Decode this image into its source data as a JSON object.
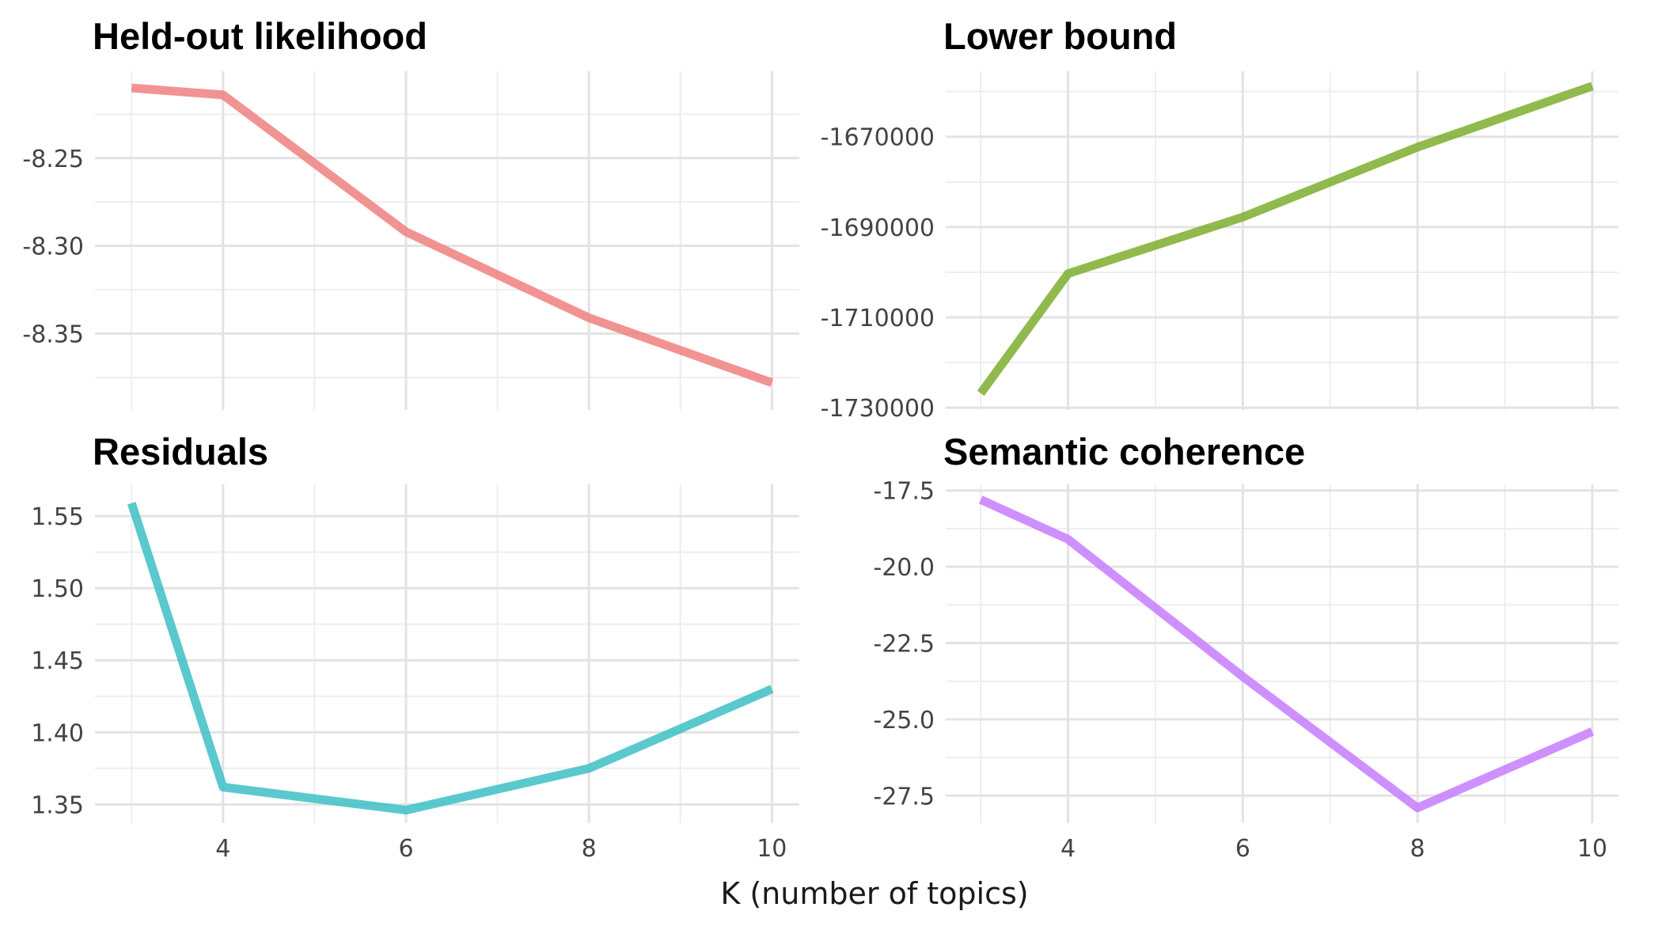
{
  "chart_data": [
    {
      "type": "line",
      "title": "Held-out likelihood",
      "color": "#F08080",
      "x": [
        3,
        4,
        6,
        8,
        10
      ],
      "y": [
        -8.21,
        -8.214,
        -8.292,
        -8.341,
        -8.378
      ],
      "xlim": [
        2.6,
        10.3
      ],
      "ylim": [
        -8.3935,
        -8.2005
      ],
      "yticks": [
        -8.25,
        -8.3,
        -8.35
      ],
      "ytick_labels": [
        "-8.25",
        "-8.30",
        "-8.35"
      ],
      "xticks": [
        4,
        6,
        8,
        10
      ],
      "xtick_labels": [],
      "grid": true
    },
    {
      "type": "line",
      "title": "Lower bound",
      "color": "#7CAE2E",
      "x": [
        3,
        4,
        6,
        8,
        10
      ],
      "y": [
        -1726800,
        -1700300,
        -1687800,
        -1672300,
        -1658800
      ],
      "xlim": [
        2.6,
        10.3
      ],
      "ylim": [
        -1730500,
        -1655500
      ],
      "yticks": [
        -1670000,
        -1690000,
        -1710000,
        -1730000
      ],
      "ytick_labels": [
        "-1670000",
        "-1690000",
        "-1710000",
        "-1730000"
      ],
      "xticks": [
        4,
        6,
        8,
        10
      ],
      "xtick_labels": [],
      "grid": true
    },
    {
      "type": "line",
      "title": "Residuals",
      "color": "#3DBFC4",
      "x": [
        3,
        4,
        6,
        8,
        10
      ],
      "y": [
        1.559,
        1.362,
        1.346,
        1.375,
        1.43
      ],
      "xlim": [
        2.6,
        10.3
      ],
      "ylim": [
        1.337,
        1.572
      ],
      "yticks": [
        1.55,
        1.5,
        1.45,
        1.4,
        1.35
      ],
      "ytick_labels": [
        "1.55",
        "1.50",
        "1.45",
        "1.40",
        "1.35"
      ],
      "xticks": [
        4,
        6,
        8,
        10
      ],
      "xtick_labels": [
        "4",
        "6",
        "8",
        "10"
      ],
      "grid": true
    },
    {
      "type": "line",
      "title": "Semantic coherence",
      "color": "#C77CFF",
      "x": [
        3,
        4,
        6,
        8,
        10
      ],
      "y": [
        -17.8,
        -19.1,
        -23.6,
        -27.9,
        -25.4
      ],
      "xlim": [
        2.6,
        10.3
      ],
      "ylim": [
        -28.4,
        -17.3
      ],
      "yticks": [
        -17.5,
        -20.0,
        -22.5,
        -25.0,
        -27.5
      ],
      "ytick_labels": [
        "-17.5",
        "-20.0",
        "-22.5",
        "-25.0",
        "-27.5"
      ],
      "xticks": [
        4,
        6,
        8,
        10
      ],
      "xtick_labels": [
        "4",
        "6",
        "8",
        "10"
      ],
      "grid": true
    }
  ],
  "xlabel": "K (number of topics)"
}
